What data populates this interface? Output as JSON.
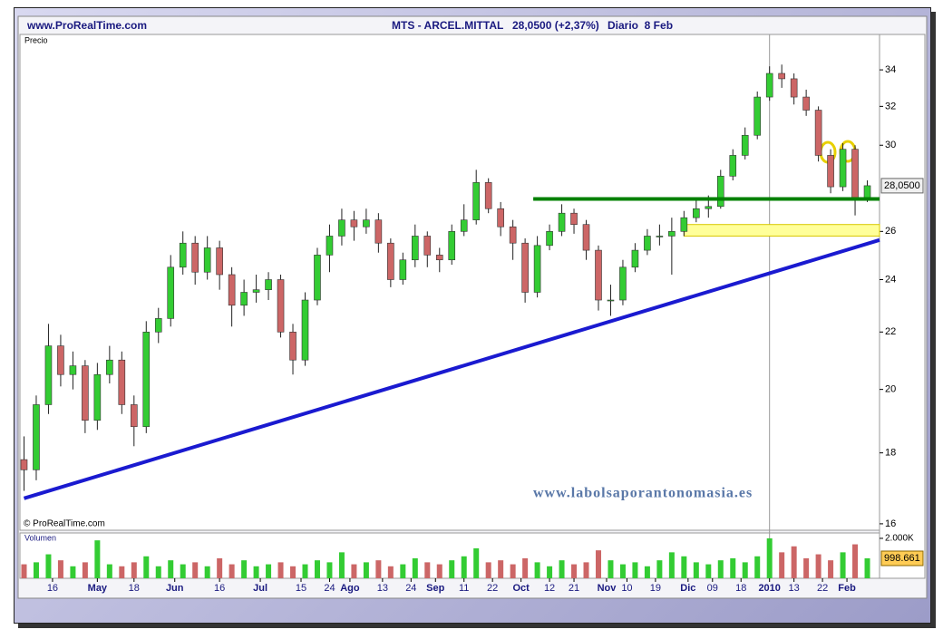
{
  "chart_data": {
    "type": "candlestick",
    "site": "www.ProRealTime.com",
    "title": "MTS - ARCEL.MITTAL",
    "price_text": "28,0500 (+2,37%)",
    "period": "Diario  8 Feb",
    "y_label": "Precio",
    "copyright": "© ProRealTime.com",
    "watermark": "www.labolsaporantonomasia.es",
    "log_scale": true,
    "up_color": "#33cc33",
    "down_color": "#cc6666",
    "xlim": [
      0,
      211
    ],
    "ylim": [
      15.83,
      36.06
    ],
    "yticks": [
      16,
      18,
      20,
      22,
      24,
      26,
      30,
      32,
      34
    ],
    "xticks": [
      {
        "value": 8,
        "label": "16"
      },
      {
        "value": 19,
        "label": "May"
      },
      {
        "value": 28,
        "label": "18"
      },
      {
        "value": 38,
        "label": "Jun"
      },
      {
        "value": 49,
        "label": "16"
      },
      {
        "value": 59,
        "label": "Jul"
      },
      {
        "value": 69,
        "label": "15"
      },
      {
        "value": 76,
        "label": "24"
      },
      {
        "value": 81,
        "label": "Ago"
      },
      {
        "value": 89,
        "label": "13"
      },
      {
        "value": 96,
        "label": "24"
      },
      {
        "value": 102,
        "label": "Sep"
      },
      {
        "value": 109,
        "label": "11"
      },
      {
        "value": 116,
        "label": "22"
      },
      {
        "value": 123,
        "label": "Oct"
      },
      {
        "value": 130,
        "label": "12"
      },
      {
        "value": 136,
        "label": "21"
      },
      {
        "value": 144,
        "label": "Nov"
      },
      {
        "value": 149,
        "label": "10"
      },
      {
        "value": 156,
        "label": "19"
      },
      {
        "value": 164,
        "label": "Dic"
      },
      {
        "value": 170,
        "label": "09"
      },
      {
        "value": 177,
        "label": "18"
      },
      {
        "value": 184,
        "label": "2010"
      },
      {
        "value": 190,
        "label": "13"
      },
      {
        "value": 197,
        "label": "22"
      },
      {
        "value": 203,
        "label": "Feb"
      }
    ],
    "x": [
      1,
      4,
      7,
      10,
      13,
      16,
      19,
      22,
      25,
      28,
      31,
      34,
      37,
      40,
      43,
      46,
      49,
      52,
      55,
      58,
      61,
      64,
      67,
      70,
      73,
      76,
      79,
      82,
      85,
      88,
      91,
      94,
      97,
      100,
      103,
      106,
      109,
      112,
      115,
      118,
      121,
      124,
      127,
      130,
      133,
      136,
      139,
      142,
      145,
      148,
      151,
      154,
      157,
      160,
      163,
      166,
      169,
      172,
      175,
      178,
      181,
      184,
      187,
      190,
      193,
      196,
      199,
      202,
      205,
      208
    ],
    "open": [
      17.8,
      17.5,
      19.5,
      21.5,
      20.5,
      20.8,
      19,
      20.5,
      21,
      19.5,
      18.8,
      22,
      22.5,
      24.5,
      25.5,
      24.3,
      25.3,
      24.2,
      23,
      23.5,
      23.6,
      24,
      22,
      21,
      23.2,
      25,
      25.8,
      26.5,
      26.2,
      26.5,
      25.5,
      24,
      24.8,
      25.8,
      25,
      24.8,
      26,
      26.5,
      28.2,
      27,
      26.2,
      25.5,
      23.5,
      25.4,
      26,
      26.8,
      26.3,
      25.2,
      23.2,
      23.2,
      24.5,
      25.2,
      25.8,
      25.8,
      26,
      26.6,
      27,
      27.1,
      28.5,
      29.5,
      30.5,
      32.5,
      33.8,
      33.5,
      32.5,
      31.8,
      29.5,
      28,
      29.8,
      27.4
    ],
    "high": [
      18.5,
      19.8,
      22.3,
      21.9,
      21.3,
      21.0,
      20.9,
      21.5,
      21.3,
      19.8,
      22.4,
      22.9,
      25.0,
      26.0,
      25.8,
      25.8,
      25.6,
      24.5,
      24.0,
      24.2,
      24.3,
      24.2,
      22.3,
      23.5,
      25.3,
      26.3,
      27.0,
      26.9,
      27.0,
      26.8,
      25.7,
      25.1,
      26.3,
      26.0,
      25.3,
      26.3,
      27.2,
      28.8,
      28.4,
      27.3,
      26.5,
      25.7,
      25.8,
      26.3,
      27.2,
      27.0,
      26.5,
      25.4,
      23.8,
      24.8,
      25.5,
      26.1,
      26.3,
      26.6,
      26.9,
      27.5,
      27.6,
      28.8,
      29.8,
      30.9,
      32.8,
      34.2,
      34.3,
      33.8,
      32.9,
      32.0,
      29.8,
      30.1,
      30.0,
      28.3
    ],
    "low": [
      16.9,
      17.2,
      19.2,
      20.1,
      20.0,
      18.6,
      18.7,
      20.2,
      19.2,
      18.2,
      18.6,
      21.6,
      22.2,
      24.2,
      23.8,
      24.0,
      23.6,
      22.2,
      22.6,
      23.1,
      23.2,
      21.8,
      20.5,
      20.8,
      23.0,
      24.3,
      25.4,
      25.6,
      25.9,
      25.1,
      23.7,
      23.8,
      24.5,
      24.5,
      24.3,
      24.6,
      25.8,
      26.3,
      26.8,
      25.8,
      24.8,
      23.1,
      23.3,
      25.2,
      25.8,
      25.9,
      24.8,
      22.8,
      22.6,
      23.0,
      24.3,
      25.0,
      25.4,
      24.2,
      25.8,
      26.4,
      26.6,
      27.0,
      28.3,
      29.3,
      30.3,
      32.3,
      33.0,
      32.1,
      31.5,
      29.2,
      27.7,
      27.8,
      26.7,
      27.3
    ],
    "close": [
      17.5,
      19.5,
      21.5,
      20.5,
      20.8,
      19,
      20.5,
      21,
      19.5,
      18.8,
      22,
      22.5,
      24.5,
      25.5,
      24.3,
      25.3,
      24.2,
      23,
      23.5,
      23.6,
      24,
      22,
      21,
      23.2,
      25,
      25.8,
      26.5,
      26.2,
      26.5,
      25.5,
      24,
      24.8,
      25.8,
      25,
      24.8,
      26,
      26.5,
      28.2,
      27,
      26.2,
      25.5,
      23.5,
      25.4,
      26,
      26.8,
      26.3,
      25.2,
      23.2,
      23.2,
      24.5,
      25.2,
      25.8,
      25.8,
      26,
      26.6,
      27,
      27.1,
      28.5,
      29.5,
      30.5,
      32.5,
      33.8,
      33.5,
      32.5,
      31.8,
      29.5,
      28,
      29.8,
      27.4,
      28.05
    ],
    "last_price": {
      "value": 28.05,
      "label": "28,0500"
    },
    "lines": [
      {
        "color": "#1a1ad0",
        "x": [
          1,
          211
        ],
        "y": [
          16.69,
          25.63
        ]
      },
      {
        "color": "#008000",
        "x": [
          126,
          211
        ],
        "y": [
          27.44,
          27.44
        ]
      }
    ],
    "bands": [
      {
        "color": "#ffff99",
        "x": [
          163,
          211
        ],
        "y": [
          25.8,
          26.3
        ]
      }
    ],
    "volume": {
      "title": "Volumen",
      "ylim": [
        0,
        2270000
      ],
      "yticks": [
        {
          "value": 2000000,
          "label": "2.000K"
        }
      ],
      "values": [
        700000,
        800000,
        1200000,
        900000,
        600000,
        800000,
        1900000,
        700000,
        600000,
        800000,
        1100000,
        600000,
        900000,
        700000,
        800000,
        600000,
        1000000,
        700000,
        900000,
        600000,
        700000,
        800000,
        600000,
        700000,
        900000,
        800000,
        1300000,
        700000,
        800000,
        900000,
        600000,
        700000,
        1000000,
        800000,
        700000,
        900000,
        1100000,
        1500000,
        800000,
        900000,
        700000,
        1000000,
        800000,
        600000,
        900000,
        700000,
        800000,
        1400000,
        900000,
        700000,
        800000,
        600000,
        900000,
        1300000,
        1100000,
        800000,
        700000,
        900000,
        1000000,
        800000,
        1100000,
        2000000,
        1300000,
        1600000,
        1000000,
        1200000,
        900000,
        1300000,
        1700000,
        998661
      ],
      "last": {
        "value": 998661,
        "label": "998.661"
      }
    }
  }
}
